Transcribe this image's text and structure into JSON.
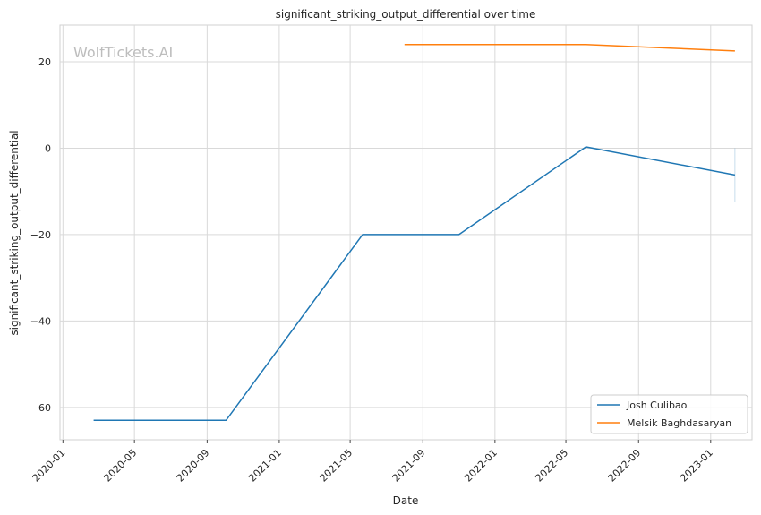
{
  "chart_data": {
    "type": "line",
    "title": "significant_striking_output_differential over time",
    "xlabel": "Date",
    "ylabel": "significant_striking_output_differential",
    "watermark": "WolfTickets.AI",
    "x_range": [
      "2019-12-27",
      "2023-03-12"
    ],
    "ylim": [
      -67.5,
      28.5
    ],
    "x_ticks": [
      "2020-01",
      "2020-05",
      "2020-09",
      "2021-01",
      "2021-05",
      "2021-09",
      "2022-01",
      "2022-05",
      "2022-09",
      "2023-01"
    ],
    "y_ticks": [
      -60,
      -40,
      -20,
      0,
      20
    ],
    "y_tick_labels": [
      "−60",
      "−40",
      "−20",
      "0",
      "20"
    ],
    "grid": true,
    "legend_position": "lower-right",
    "series": [
      {
        "name": "Josh Culibao",
        "color": "#1f77b4",
        "points": [
          {
            "x": "2020-02-22",
            "y": -63
          },
          {
            "x": "2020-10-03",
            "y": -63
          },
          {
            "x": "2021-05-22",
            "y": -20
          },
          {
            "x": "2021-11-01",
            "y": -20
          },
          {
            "x": "2022-06-04",
            "y": 0.3
          },
          {
            "x": "2023-02-11",
            "y": -6.2
          }
        ]
      },
      {
        "name": "Melsik Baghdasaryan",
        "color": "#ff7f0e",
        "points": [
          {
            "x": "2021-08-01",
            "y": 24
          },
          {
            "x": "2022-06-04",
            "y": 24
          },
          {
            "x": "2023-02-11",
            "y": 22.5
          }
        ]
      }
    ],
    "error_band": {
      "x": "2023-02-11",
      "y_low": -12.5,
      "y_high": 0,
      "color": "#1f77b4"
    }
  }
}
